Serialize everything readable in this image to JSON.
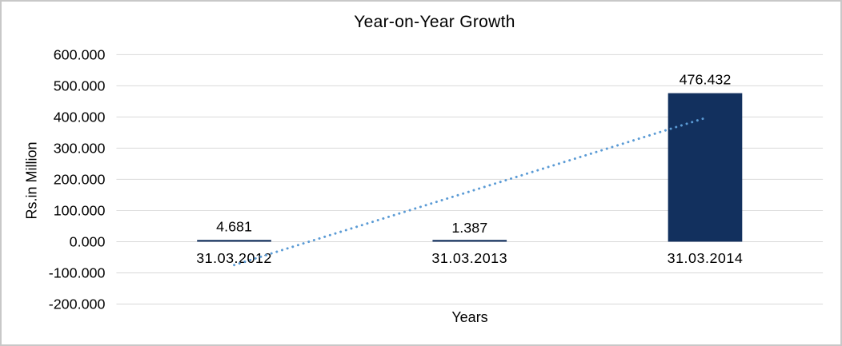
{
  "chart_data": {
    "type": "bar",
    "title": "Year-on-Year Growth",
    "xlabel": "Years",
    "ylabel": "Rs.in Million",
    "categories": [
      "31.03.2012",
      "31.03.2013",
      "31.03.2014"
    ],
    "values": [
      4.681,
      1.387,
      476.432
    ],
    "value_labels": [
      "4.681",
      "1.387",
      "476.432"
    ],
    "y_ticks": [
      600,
      500,
      400,
      300,
      200,
      100,
      0,
      -100,
      -200
    ],
    "y_tick_labels": [
      "600.000",
      "500.000",
      "400.000",
      "300.000",
      "200.000",
      "100.000",
      "0.000",
      "-100.000",
      "-200.000"
    ],
    "ylim": [
      -200,
      600
    ],
    "grid": "horizontal",
    "legend": "none",
    "bar_color": "#12305E",
    "grid_color": "#D9D9D9",
    "trendline": {
      "type": "linear",
      "style": "dotted",
      "color": "#5B9BD5",
      "start_value": -75.0,
      "end_value": 396.7
    }
  }
}
